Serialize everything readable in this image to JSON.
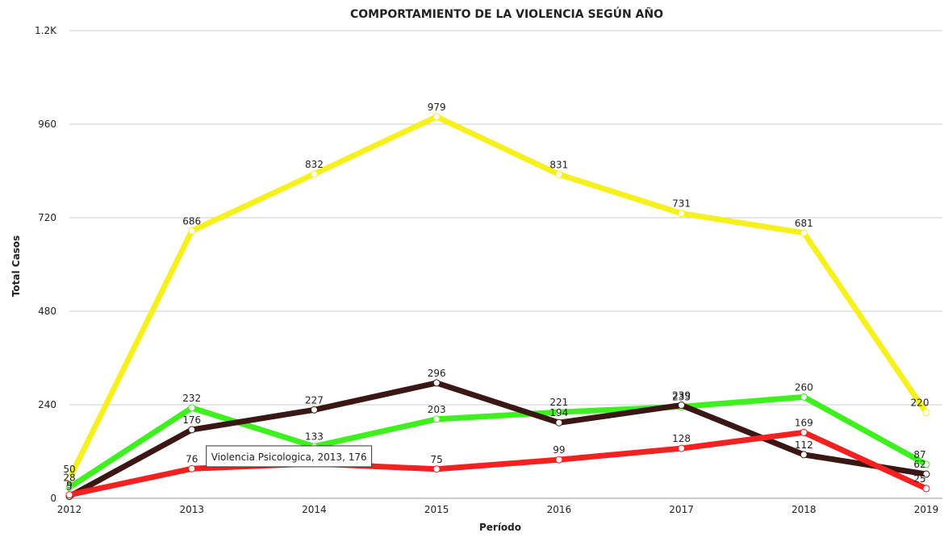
{
  "chart_data": {
    "type": "line",
    "title": "COMPORTAMIENTO DE LA VIOLENCIA SEGÚN AÑO",
    "x_label": "Período",
    "y_label": "Total Casos",
    "categories": [
      "2012",
      "2013",
      "2014",
      "2015",
      "2016",
      "2017",
      "2018",
      "2019"
    ],
    "series": [
      {
        "color": "#f5f01e",
        "values": [
          50,
          686,
          832,
          979,
          831,
          731,
          681,
          220
        ]
      },
      {
        "color": "#3ef01e",
        "values": [
          28,
          232,
          133,
          203,
          221,
          235,
          260,
          87
        ]
      },
      {
        "name": "Violencia Psicologica",
        "color": "#3a1614",
        "values": [
          5,
          176,
          227,
          296,
          194,
          239,
          112,
          62
        ]
      },
      {
        "color": "#f52020",
        "values": [
          9,
          76,
          89,
          75,
          99,
          128,
          169,
          25
        ]
      }
    ],
    "ylim": [
      0,
      1200
    ],
    "yticks": [
      0,
      240,
      480,
      720,
      960,
      {
        "value": 1200,
        "label": "1.2K"
      }
    ],
    "grid": true,
    "tooltip": {
      "series": 2,
      "index": 1
    }
  }
}
